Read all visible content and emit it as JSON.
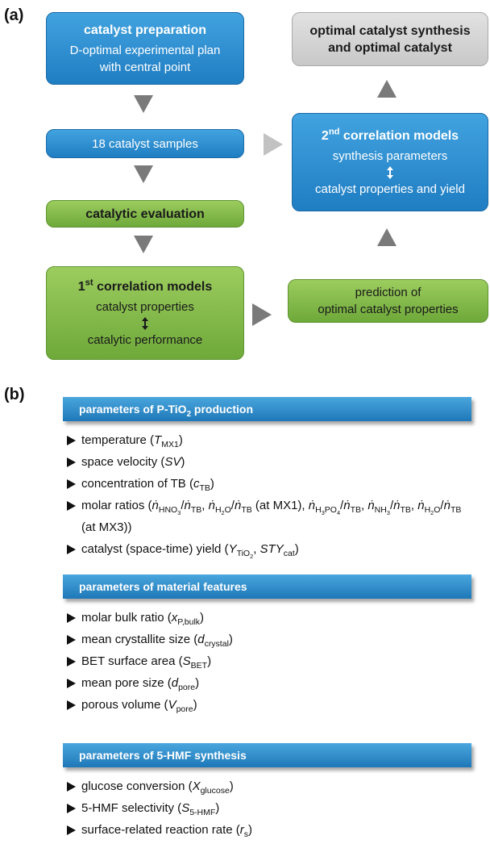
{
  "panel_a": {
    "label": "(a)",
    "boxes": [
      {
        "lines": [
          [
            "catalyst preparation"
          ],
          [
            "D-optimal experimental plan"
          ],
          [
            "with central point"
          ]
        ]
      },
      {
        "lines": [
          [
            "18 catalyst samples"
          ]
        ]
      },
      {
        "lines": [
          [
            "catalytic evaluation"
          ]
        ]
      },
      {
        "lines": [
          [
            "1",
            {
              "sup": "st"
            },
            " correlation models"
          ],
          [
            "catalyst properties"
          ],
          [
            "catalytic performance"
          ]
        ]
      },
      {
        "lines": [
          [
            "prediction of"
          ],
          [
            "optimal catalyst properties"
          ]
        ]
      },
      {
        "lines": [
          [
            "2",
            {
              "sup": "nd"
            },
            " correlation models"
          ],
          [
            "synthesis parameters"
          ],
          [
            "catalyst properties and yield"
          ]
        ]
      },
      {
        "lines": [
          [
            "optimal catalyst synthesis"
          ],
          [
            "and optimal catalyst"
          ]
        ]
      }
    ]
  },
  "panel_b": {
    "label": "(b)",
    "sections": [
      {
        "header": [
          "parameters of P-TiO",
          {
            "sub": "2"
          },
          " production"
        ],
        "items": [
          [
            "temperature (",
            {
              "i": "T"
            },
            {
              "sub": "MX1"
            },
            ")"
          ],
          [
            "space velocity (",
            {
              "i": "SV"
            },
            ")"
          ],
          [
            "concentration of TB (",
            {
              "i": "c"
            },
            {
              "sub": "TB"
            },
            ")"
          ],
          [
            "molar ratios (",
            {
              "i": "ṅ"
            },
            {
              "sub": [
                "HNO",
                {
                  "sub": "3"
                }
              ]
            },
            "/",
            {
              "i": "ṅ"
            },
            {
              "sub": "TB"
            },
            ", ",
            {
              "i": "ṅ"
            },
            {
              "sub": [
                "H",
                {
                  "sub": "2"
                },
                "O"
              ]
            },
            "/",
            {
              "i": "ṅ"
            },
            {
              "sub": "TB"
            },
            " (at MX1), ",
            {
              "i": "ṅ"
            },
            {
              "sub": [
                "H",
                {
                  "sub": "3"
                },
                "PO",
                {
                  "sub": "4"
                }
              ]
            },
            "/",
            {
              "i": "ṅ"
            },
            {
              "sub": "TB"
            },
            ", ",
            {
              "i": "ṅ"
            },
            {
              "sub": [
                "NH",
                {
                  "sub": "3"
                }
              ]
            },
            "/",
            {
              "i": "ṅ"
            },
            {
              "sub": "TB"
            },
            ", ",
            {
              "i": "ṅ"
            },
            {
              "sub": [
                "H",
                {
                  "sub": "2"
                },
                "O"
              ]
            },
            "/",
            {
              "i": "ṅ"
            },
            {
              "sub": "TB"
            },
            " (at MX3))"
          ],
          [
            "catalyst (space-time) yield (",
            {
              "i": "Y"
            },
            {
              "sub": [
                "TiO",
                {
                  "sub": "2"
                }
              ]
            },
            ", ",
            {
              "i": "STY"
            },
            {
              "sub": "cat"
            },
            ")"
          ]
        ]
      },
      {
        "header": [
          "parameters of material features"
        ],
        "items": [
          [
            "molar bulk ratio (",
            {
              "i": "x"
            },
            {
              "sub": "P,bulk"
            },
            ")"
          ],
          [
            "mean crystallite size (",
            {
              "i": "d"
            },
            {
              "sub": "crystal"
            },
            ")"
          ],
          [
            "BET surface area (",
            {
              "i": "S"
            },
            {
              "sub": "BET"
            },
            ")"
          ],
          [
            "mean pore size (",
            {
              "i": "d"
            },
            {
              "sub": "pore"
            },
            ")"
          ],
          [
            "porous volume (",
            {
              "i": "V"
            },
            {
              "sub": "pore"
            },
            ")"
          ]
        ]
      },
      {
        "header": [
          "parameters of 5-HMF synthesis"
        ],
        "items": [
          [
            "glucose conversion (",
            {
              "i": "X"
            },
            {
              "sub": "glucose"
            },
            ")"
          ],
          [
            "5-HMF selectivity (",
            {
              "i": "S"
            },
            {
              "sub": "5-HMF"
            },
            ")"
          ],
          [
            "surface-related reaction rate (",
            {
              "i": "r"
            },
            {
              "sub": "s"
            },
            ")"
          ]
        ]
      }
    ]
  }
}
